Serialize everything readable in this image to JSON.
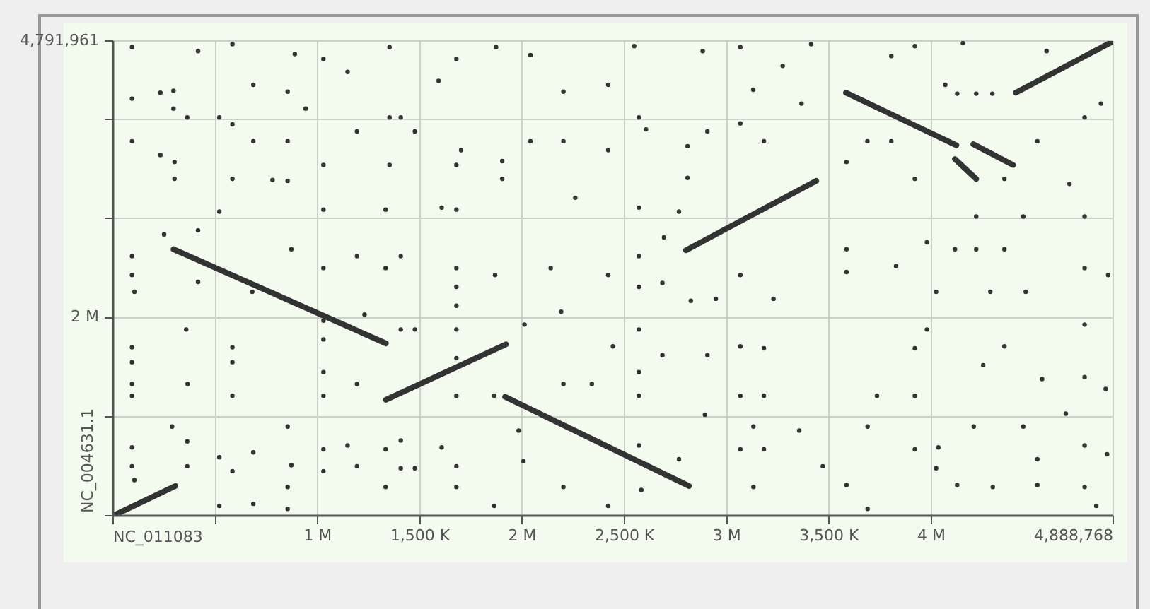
{
  "chart_data": {
    "type": "scatter",
    "xlim": [
      0,
      4888768
    ],
    "ylim": [
      0,
      4791961
    ],
    "xlabel": "NC_011083",
    "ylabel": "NC_004631.1",
    "xticks": [
      {
        "value": 0,
        "label": null
      },
      {
        "value": 500000,
        "label": null
      },
      {
        "value": 1000000,
        "label": "1 M"
      },
      {
        "value": 1500000,
        "label": "1,500 K"
      },
      {
        "value": 2000000,
        "label": "2 M"
      },
      {
        "value": 2500000,
        "label": "2,500 K"
      },
      {
        "value": 3000000,
        "label": "3 M"
      },
      {
        "value": 3500000,
        "label": "3,500 K"
      },
      {
        "value": 4000000,
        "label": "4 M"
      },
      {
        "value": 4888768,
        "label": "4,888,768"
      }
    ],
    "yticks": [
      {
        "value": 0,
        "label": null
      },
      {
        "value": 1000000,
        "label": null
      },
      {
        "value": 2000000,
        "label": "2 M"
      },
      {
        "value": 3000000,
        "label": null
      },
      {
        "value": 4000000,
        "label": null
      },
      {
        "value": 4791961,
        "label": "4,791,961"
      }
    ],
    "grid": true,
    "legend": false,
    "marker": "circle",
    "series": [
      {
        "type": "scatter",
        "color": "#333333",
        "x": [
          92000,
          415000,
          583000,
          888000,
          1028000,
          1146000,
          1351000,
          1678000,
          1872000,
          2040000,
          92000,
          231000,
          295000,
          295000,
          92000,
          300000,
          300000,
          231000,
          362000,
          519000,
          583000,
          685000,
          685000,
          853000,
          853000,
          853000,
          941000,
          779000,
          583000,
          1028000,
          1028000,
          1192000,
          1351000,
          1351000,
          1332000,
          1406000,
          1475000,
          1591000,
          1678000,
          1678000,
          1606000,
          1701000,
          1902000,
          1902000,
          2040000,
          2201000,
          2201000,
          2259000,
          92000,
          92000,
          104000,
          249000,
          415000,
          415000,
          519000,
          680000,
          871000,
          1028000,
          1192000,
          1332000,
          1406000,
          1678000,
          1678000,
          1867000,
          2139000,
          2190000,
          1678000,
          1028000,
          1028000,
          1229000,
          92000,
          92000,
          92000,
          92000,
          357000,
          364000,
          583000,
          583000,
          583000,
          1028000,
          1028000,
          1192000,
          1406000,
          1475000,
          1678000,
          1678000,
          1678000,
          1863000,
          2011000,
          2201000,
          1982000,
          92000,
          92000,
          104000,
          288000,
          362000,
          362000,
          519000,
          583000,
          685000,
          853000,
          871000,
          853000,
          1028000,
          1028000,
          1146000,
          1192000,
          1332000,
          1332000,
          1406000,
          1406000,
          1475000,
          1606000,
          1678000,
          1678000,
          1863000,
          2006000,
          2201000,
          519000,
          685000,
          853000,
          2547000,
          2882000,
          3066000,
          3412000,
          3804000,
          3919000,
          4154000,
          4563000,
          2420000,
          2420000,
          2570000,
          2605000,
          2808000,
          2808000,
          2905000,
          3066000,
          3129000,
          3181000,
          3365000,
          3273000,
          2570000,
          2766000,
          3585000,
          3687000,
          3804000,
          3919000,
          4068000,
          4126000,
          4219000,
          4298000,
          4357000,
          4518000,
          4749000,
          4829000,
          4675000,
          4219000,
          4449000,
          4749000,
          2693000,
          2570000,
          2570000,
          2420000,
          2685000,
          2824000,
          2946000,
          3066000,
          3228000,
          3585000,
          3585000,
          3827000,
          3978000,
          4115000,
          4219000,
          4357000,
          4023000,
          4288000,
          4461000,
          4749000,
          4864000,
          2570000,
          2443000,
          2570000,
          2570000,
          2685000,
          2905000,
          2340000,
          3066000,
          3181000,
          3066000,
          3181000,
          3919000,
          3978000,
          3734000,
          3919000,
          4253000,
          4357000,
          4541000,
          4749000,
          4749000,
          4852000,
          4657000,
          2893000,
          2570000,
          2605000,
          2766000,
          2420000,
          2582000,
          3130000,
          3354000,
          3066000,
          3181000,
          3469000,
          3130000,
          3585000,
          3688000,
          3919000,
          4034000,
          4023000,
          4207000,
          4300000,
          4449000,
          4518000,
          4518000,
          4749000,
          4859000,
          4749000,
          4126000,
          3688000,
          4806000
        ],
        "values": [
          4730000,
          4690000,
          4760000,
          4660000,
          4610000,
          4480000,
          4730000,
          4610000,
          4730000,
          4650000,
          4210000,
          4270000,
          4290000,
          4110000,
          3780000,
          3570000,
          3400000,
          3640000,
          4020000,
          4020000,
          3950000,
          4350000,
          3780000,
          4280000,
          3780000,
          3380000,
          4110000,
          3390000,
          3400000,
          3540000,
          3090000,
          3880000,
          4020000,
          3540000,
          3090000,
          4020000,
          3880000,
          4390000,
          3540000,
          3090000,
          3110000,
          3690000,
          3580000,
          3400000,
          3780000,
          4280000,
          3780000,
          3210000,
          2620000,
          2430000,
          2260000,
          2840000,
          2880000,
          2360000,
          3070000,
          2260000,
          2690000,
          2500000,
          2620000,
          2500000,
          2620000,
          2500000,
          2310000,
          2430000,
          2500000,
          2060000,
          2120000,
          1970000,
          1780000,
          2030000,
          1700000,
          1550000,
          1330000,
          1210000,
          1880000,
          1330000,
          1700000,
          1550000,
          1210000,
          1450000,
          1210000,
          1330000,
          1880000,
          1880000,
          1880000,
          1590000,
          1210000,
          1210000,
          1930000,
          1330000,
          860000,
          690000,
          500000,
          360000,
          900000,
          750000,
          500000,
          590000,
          450000,
          640000,
          900000,
          510000,
          290000,
          670000,
          450000,
          710000,
          500000,
          670000,
          290000,
          760000,
          480000,
          480000,
          690000,
          500000,
          290000,
          100000,
          550000,
          290000,
          100000,
          120000,
          70000,
          4740000,
          4690000,
          4730000,
          4760000,
          4640000,
          4740000,
          4770000,
          4690000,
          4350000,
          3690000,
          4020000,
          3900000,
          3730000,
          3410000,
          3880000,
          3960000,
          4300000,
          3780000,
          4160000,
          4540000,
          3110000,
          3070000,
          3570000,
          3780000,
          3780000,
          3400000,
          4350000,
          4260000,
          4260000,
          4260000,
          3400000,
          3780000,
          4020000,
          4160000,
          3350000,
          3020000,
          3020000,
          3020000,
          2810000,
          2620000,
          2310000,
          2430000,
          2350000,
          2170000,
          2190000,
          2430000,
          2190000,
          2690000,
          2460000,
          2520000,
          2760000,
          2690000,
          2690000,
          2690000,
          2260000,
          2260000,
          2260000,
          2500000,
          2430000,
          1880000,
          1710000,
          1450000,
          1210000,
          1620000,
          1620000,
          1330000,
          1710000,
          1690000,
          1210000,
          1210000,
          1690000,
          1880000,
          1210000,
          1210000,
          1520000,
          1710000,
          1380000,
          1930000,
          1400000,
          1280000,
          1030000,
          1020000,
          710000,
          520000,
          570000,
          100000,
          260000,
          900000,
          860000,
          670000,
          670000,
          500000,
          290000,
          310000,
          900000,
          670000,
          690000,
          480000,
          900000,
          290000,
          900000,
          570000,
          310000,
          710000,
          620000,
          290000,
          310000,
          70000,
          100000
        ]
      },
      {
        "type": "line",
        "color": "#333333",
        "marker": "none",
        "x": [
          0,
          304000
        ],
        "values": [
          0,
          300000
        ]
      },
      {
        "type": "line",
        "color": "#333333",
        "marker": "none",
        "x": [
          295000,
          1333000
        ],
        "values": [
          2690000,
          1740000
        ]
      },
      {
        "type": "line",
        "color": "#333333",
        "marker": "none",
        "x": [
          1333000,
          1920000
        ],
        "values": [
          1170000,
          1730000
        ]
      },
      {
        "type": "line",
        "color": "#333333",
        "marker": "none",
        "x": [
          1916000,
          2815000
        ],
        "values": [
          1200000,
          300000
        ]
      },
      {
        "type": "line",
        "color": "#333333",
        "marker": "none",
        "x": [
          2800000,
          3437000
        ],
        "values": [
          2680000,
          3380000
        ]
      },
      {
        "type": "line",
        "color": "#333333",
        "marker": "none",
        "x": [
          3582000,
          4122000
        ],
        "values": [
          4270000,
          3740000
        ]
      },
      {
        "type": "line",
        "color": "#333333",
        "marker": "none",
        "x": [
          4205000,
          4399000
        ],
        "values": [
          3750000,
          3540000
        ]
      },
      {
        "type": "line",
        "color": "#333333",
        "marker": "none",
        "x": [
          4115000,
          4219000
        ],
        "values": [
          3600000,
          3400000
        ]
      },
      {
        "type": "line",
        "color": "#333333",
        "marker": "none",
        "x": [
          4412000,
          4880000
        ],
        "values": [
          4270000,
          4780000
        ]
      }
    ]
  }
}
